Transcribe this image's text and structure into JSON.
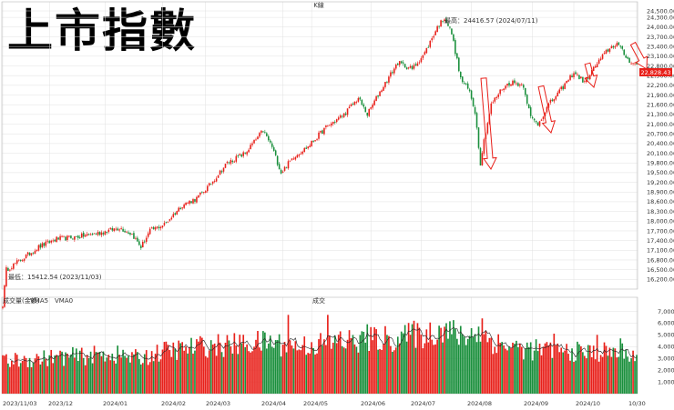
{
  "title": "上市指數",
  "price_panel": {
    "label": "K線",
    "high_text": "最高：24416.57 (2024/07/11)",
    "low_text": "最低：15412.54 (2023/11/03)",
    "last_value": "22,828.43"
  },
  "volume_panel": {
    "legend": [
      "成交量(金額)",
      "VMA5",
      "VMA0"
    ],
    "label": "成交"
  },
  "colors": {
    "up": "#e8201a",
    "down": "#1a8f3c",
    "grid": "#e0e0e0",
    "ma": "#222222",
    "arrow": "#e8201a"
  },
  "chart_data": {
    "type": "candlestick",
    "price_ylim": [
      15900,
      24500
    ],
    "price_ticks": [
      "24,500.00",
      "24,300.00",
      "24,000.00",
      "23,700.00",
      "23,400.00",
      "23,100.00",
      "22,800.00",
      "22,500.00",
      "22,200.00",
      "21,900.00",
      "21,600.00",
      "21,300.00",
      "21,000.00",
      "20,700.00",
      "20,400.00",
      "20,100.00",
      "19,800.00",
      "19,500.00",
      "19,200.00",
      "18,900.00",
      "18,600.00",
      "18,300.00",
      "18,000.00",
      "17,700.00",
      "17,400.00",
      "17,100.00",
      "16,800.00",
      "16,500.00",
      "16,200.00"
    ],
    "volume_ylim": [
      0,
      7500
    ],
    "volume_ticks": [
      "7,000",
      "6,000",
      "5,000",
      "4,000",
      "3,000",
      "2,000",
      "1,000"
    ],
    "x_labels": [
      "2023/11/03",
      "2023/12",
      "2024/01",
      "2024/02",
      "2024/03",
      "2024/04",
      "2024/05",
      "2024/06",
      "2024/07",
      "2024/08",
      "2024/09",
      "2024/10",
      "10/30"
    ],
    "close_path": [
      [
        0,
        15420
      ],
      [
        2,
        16500
      ],
      [
        10,
        16800
      ],
      [
        20,
        17200
      ],
      [
        30,
        17450
      ],
      [
        40,
        17500
      ],
      [
        55,
        17650
      ],
      [
        65,
        17800
      ],
      [
        72,
        17600
      ],
      [
        77,
        17200
      ],
      [
        82,
        17700
      ],
      [
        90,
        17900
      ],
      [
        100,
        18500
      ],
      [
        108,
        18700
      ],
      [
        115,
        19100
      ],
      [
        125,
        19800
      ],
      [
        135,
        20100
      ],
      [
        145,
        20800
      ],
      [
        150,
        20300
      ],
      [
        155,
        19500
      ],
      [
        162,
        20000
      ],
      [
        170,
        20300
      ],
      [
        180,
        20900
      ],
      [
        190,
        21300
      ],
      [
        198,
        21800
      ],
      [
        203,
        21300
      ],
      [
        210,
        22000
      ],
      [
        220,
        22900
      ],
      [
        228,
        22700
      ],
      [
        235,
        23200
      ],
      [
        242,
        24000
      ],
      [
        246,
        24300
      ],
      [
        250,
        23800
      ],
      [
        255,
        22400
      ],
      [
        260,
        22000
      ],
      [
        263,
        21400
      ],
      [
        266,
        19800
      ],
      [
        268,
        20500
      ],
      [
        272,
        21600
      ],
      [
        278,
        22100
      ],
      [
        283,
        22300
      ],
      [
        290,
        22200
      ],
      [
        294,
        21200
      ],
      [
        298,
        21000
      ],
      [
        304,
        21600
      ],
      [
        310,
        22000
      ],
      [
        318,
        22600
      ],
      [
        324,
        22300
      ],
      [
        330,
        22800
      ],
      [
        337,
        23300
      ],
      [
        342,
        23500
      ],
      [
        348,
        23000
      ],
      [
        353,
        22828
      ]
    ],
    "volume_path": [
      [
        0,
        2700
      ],
      [
        15,
        2950
      ],
      [
        30,
        3100
      ],
      [
        45,
        3200
      ],
      [
        60,
        3400
      ],
      [
        75,
        3000
      ],
      [
        90,
        3600
      ],
      [
        105,
        3900
      ],
      [
        115,
        4100
      ],
      [
        125,
        4100
      ],
      [
        140,
        4300
      ],
      [
        150,
        4400
      ],
      [
        160,
        4000
      ],
      [
        175,
        4200
      ],
      [
        190,
        4400
      ],
      [
        205,
        4600
      ],
      [
        220,
        4700
      ],
      [
        235,
        5000
      ],
      [
        245,
        5600
      ],
      [
        255,
        4800
      ],
      [
        265,
        5200
      ],
      [
        275,
        4300
      ],
      [
        290,
        3800
      ],
      [
        300,
        3700
      ],
      [
        312,
        3600
      ],
      [
        325,
        3500
      ],
      [
        340,
        3550
      ],
      [
        353,
        3300
      ]
    ],
    "volume_spikes": [
      [
        159,
        6700
      ],
      [
        181,
        6700
      ],
      [
        203,
        5900
      ],
      [
        229,
        6200
      ],
      [
        267,
        6400
      ],
      [
        265,
        5700
      ],
      [
        188,
        5300
      ],
      [
        307,
        5100
      ],
      [
        331,
        5000
      ],
      [
        344,
        4700
      ]
    ]
  }
}
